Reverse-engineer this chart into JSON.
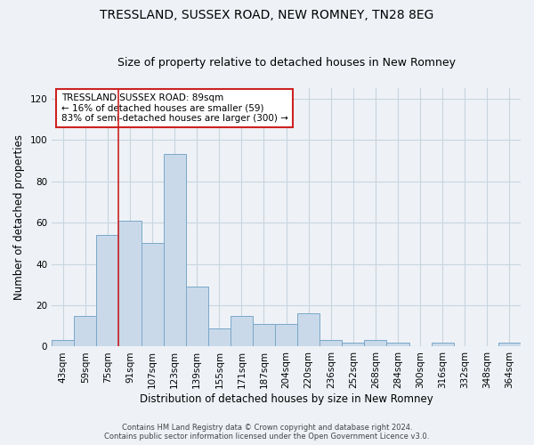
{
  "title": "TRESSLAND, SUSSEX ROAD, NEW ROMNEY, TN28 8EG",
  "subtitle": "Size of property relative to detached houses in New Romney",
  "xlabel": "Distribution of detached houses by size in New Romney",
  "ylabel": "Number of detached properties",
  "footer_line1": "Contains HM Land Registry data © Crown copyright and database right 2024.",
  "footer_line2": "Contains public sector information licensed under the Open Government Licence v3.0.",
  "categories": [
    "43sqm",
    "59sqm",
    "75sqm",
    "91sqm",
    "107sqm",
    "123sqm",
    "139sqm",
    "155sqm",
    "171sqm",
    "187sqm",
    "204sqm",
    "220sqm",
    "236sqm",
    "252sqm",
    "268sqm",
    "284sqm",
    "300sqm",
    "316sqm",
    "332sqm",
    "348sqm",
    "364sqm"
  ],
  "values": [
    3,
    15,
    54,
    61,
    50,
    93,
    29,
    9,
    15,
    11,
    11,
    16,
    3,
    2,
    3,
    2,
    0,
    2,
    0,
    0,
    2
  ],
  "bar_color": "#c9d9ea",
  "bar_edge_color": "#7aa8c8",
  "vline_color": "#cc2222",
  "annotation_text": "TRESSLAND SUSSEX ROAD: 89sqm\n← 16% of detached houses are smaller (59)\n83% of semi-detached houses are larger (300) →",
  "annotation_box_color": "#ffffff",
  "annotation_box_edge": "#cc2222",
  "ylim": [
    0,
    125
  ],
  "yticks": [
    0,
    20,
    40,
    60,
    80,
    100,
    120
  ],
  "grid_color": "#c8d4de",
  "bg_color": "#eef2f7",
  "plot_bg_color": "#eef2f7",
  "title_fontsize": 10,
  "subtitle_fontsize": 9,
  "ylabel_fontsize": 8.5,
  "xlabel_fontsize": 8.5,
  "tick_fontsize": 7.5,
  "footer_fontsize": 6,
  "annotation_fontsize": 7.5
}
